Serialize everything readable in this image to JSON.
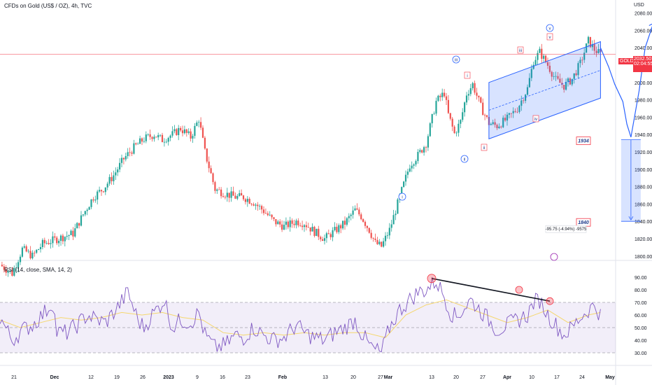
{
  "header": {
    "title": "CFDs on Gold (US$ / OZ), 4h, TVC"
  },
  "rsi": {
    "title": "RSI (14, close, SMA, 14, 2)",
    "overbought": 70,
    "oversold": 30,
    "middle": 50,
    "ticks": [
      "90.00",
      "80.00",
      "70.00",
      "60.00",
      "50.00",
      "40.00",
      "30.00"
    ]
  },
  "price_axis": {
    "unit": "USD",
    "ticks": [
      "2080.00",
      "2060.00",
      "2040.00",
      "2020.00",
      "2000.00",
      "1980.00",
      "1960.00",
      "1940.00",
      "1920.00",
      "1900.00",
      "1880.00",
      "1860.00",
      "1840.00",
      "1820.00",
      "1800.00"
    ],
    "current_label": "2032.50",
    "countdown": "02:04:55",
    "symbol": "GOLD"
  },
  "time_axis": {
    "ticks": [
      "21",
      "Dec",
      "12",
      "19",
      "26",
      "2023",
      "9",
      "16",
      "23",
      "Feb",
      "13",
      "20",
      "27",
      "Mar",
      "13",
      "20",
      "27",
      "Apr",
      "10",
      "17",
      "24",
      "May"
    ]
  },
  "annotations": {
    "wave_labels": [
      "i",
      "ii",
      "iii",
      "iv",
      "v",
      "i",
      "ii",
      "iii",
      "iv",
      "v"
    ],
    "target_1": "1934",
    "target_2": "1840",
    "measure": "-95.75 (-4.94%) -9575"
  },
  "colors": {
    "up": "#26a69a",
    "down": "#ef5350",
    "rsi_line": "#7e57c2",
    "rsi_ma": "#f5d76e",
    "channel": "#2962ff",
    "projection": "#2962ff",
    "price_line": "#f23645",
    "label_red": "#f23645"
  },
  "chart_data": [
    {
      "type": "candlestick",
      "title": "CFDs on Gold (US$ / OZ), 4h, TVC",
      "ylabel": "USD",
      "ylim": [
        1795,
        2095
      ],
      "x_ticks": [
        "21",
        "Dec",
        "12",
        "19",
        "26",
        "2023",
        "9",
        "16",
        "23",
        "Feb",
        "13",
        "20",
        "27",
        "Mar",
        "13",
        "20",
        "27",
        "Apr",
        "10",
        "17",
        "24",
        "May"
      ],
      "path": [
        [
          0,
          1790
        ],
        [
          6,
          1780
        ],
        [
          11,
          1808
        ],
        [
          16,
          1800
        ],
        [
          21,
          1814
        ],
        [
          26,
          1818
        ],
        [
          31,
          1822
        ],
        [
          36,
          1826
        ],
        [
          41,
          1848
        ],
        [
          46,
          1868
        ],
        [
          51,
          1878
        ],
        [
          56,
          1893
        ],
        [
          61,
          1912
        ],
        [
          66,
          1925
        ],
        [
          71,
          1935
        ],
        [
          76,
          1940
        ],
        [
          80,
          1934
        ],
        [
          85,
          1940
        ],
        [
          89,
          1947
        ],
        [
          94,
          1937
        ],
        [
          98,
          1958
        ],
        [
          101,
          1920
        ],
        [
          106,
          1877
        ],
        [
          111,
          1872
        ],
        [
          116,
          1868
        ],
        [
          120,
          1868
        ],
        [
          125,
          1862
        ],
        [
          130,
          1852
        ],
        [
          135,
          1840
        ],
        [
          140,
          1834
        ],
        [
          146,
          1840
        ],
        [
          150,
          1838
        ],
        [
          155,
          1828
        ],
        [
          160,
          1820
        ],
        [
          165,
          1829
        ],
        [
          170,
          1838
        ],
        [
          175,
          1853
        ],
        [
          178,
          1846
        ],
        [
          182,
          1830
        ],
        [
          185,
          1815
        ],
        [
          188,
          1811
        ],
        [
          192,
          1830
        ],
        [
          197,
          1868
        ],
        [
          202,
          1905
        ],
        [
          206,
          1916
        ],
        [
          210,
          1930
        ],
        [
          215,
          1978
        ],
        [
          219,
          1988
        ],
        [
          221,
          1963
        ],
        [
          224,
          1941
        ],
        [
          227,
          1955
        ],
        [
          230,
          1987
        ],
        [
          233,
          1998
        ],
        [
          237,
          1972
        ],
        [
          241,
          1953
        ],
        [
          245,
          1950
        ],
        [
          250,
          1958
        ],
        [
          255,
          1970
        ],
        [
          260,
          1993
        ],
        [
          263,
          2025
        ],
        [
          266,
          2035
        ],
        [
          270,
          2020
        ],
        [
          274,
          2003
        ],
        [
          278,
          1996
        ],
        [
          282,
          2004
        ],
        [
          286,
          2022
        ],
        [
          290,
          2048
        ],
        [
          293,
          2038
        ],
        [
          296,
          2032.5
        ]
      ],
      "current_price": 2032.5,
      "channel": {
        "upper": [
          [
            241,
            2000
          ],
          [
            296,
            2047
          ]
        ],
        "lower": [
          [
            241,
            1935
          ],
          [
            296,
            1982
          ]
        ],
        "mid": [
          [
            241,
            1968
          ],
          [
            296,
            2014
          ]
        ]
      },
      "projection": [
        [
          296,
          2040
        ],
        [
          300,
          2018
        ],
        [
          303,
          1998
        ],
        [
          307,
          1978
        ],
        [
          309,
          1952
        ],
        [
          311,
          1937
        ],
        [
          315,
          1990
        ],
        [
          318,
          2040
        ],
        [
          322,
          2068
        ]
      ],
      "targets": [
        1934,
        1840
      ]
    },
    {
      "type": "line",
      "title": "RSI (14, close, SMA, 14, 2)",
      "ylim": [
        20,
        100
      ],
      "series": [
        {
          "values": [
            [
              0,
              58
            ],
            [
              6,
              40
            ],
            [
              11,
              48
            ],
            [
              16,
              52
            ],
            [
              22,
              62
            ],
            [
              26,
              70
            ],
            [
              28,
              46
            ],
            [
              33,
              46
            ],
            [
              38,
              52
            ],
            [
              43,
              60
            ],
            [
              48,
              56
            ],
            [
              52,
              54
            ],
            [
              58,
              66
            ],
            [
              63,
              78
            ],
            [
              68,
              56
            ],
            [
              71,
              50
            ],
            [
              75,
              60
            ],
            [
              81,
              72
            ],
            [
              85,
              50
            ],
            [
              89,
              56
            ],
            [
              94,
              54
            ],
            [
              98,
              62
            ],
            [
              101,
              44
            ],
            [
              106,
              34
            ],
            [
              111,
              36
            ],
            [
              116,
              44
            ],
            [
              120,
              42
            ],
            [
              125,
              50
            ],
            [
              130,
              44
            ],
            [
              135,
              40
            ],
            [
              140,
              42
            ],
            [
              146,
              52
            ],
            [
              150,
              46
            ],
            [
              155,
              42
            ],
            [
              160,
              40
            ],
            [
              165,
              46
            ],
            [
              170,
              50
            ],
            [
              175,
              56
            ],
            [
              178,
              46
            ],
            [
              182,
              36
            ],
            [
              185,
              32
            ],
            [
              188,
              30
            ],
            [
              192,
              50
            ],
            [
              197,
              64
            ],
            [
              202,
              72
            ],
            [
              206,
              78
            ],
            [
              210,
              80
            ],
            [
              215,
              87
            ],
            [
              219,
              75
            ],
            [
              222,
              62
            ],
            [
              225,
              58
            ],
            [
              228,
              64
            ],
            [
              232,
              72
            ],
            [
              236,
              65
            ],
            [
              241,
              56
            ],
            [
              245,
              48
            ],
            [
              250,
              52
            ],
            [
              255,
              56
            ],
            [
              260,
              60
            ],
            [
              263,
              70
            ],
            [
              266,
              72
            ],
            [
              270,
              60
            ],
            [
              274,
              52
            ],
            [
              278,
              44
            ],
            [
              282,
              50
            ],
            [
              286,
              58
            ],
            [
              290,
              64
            ],
            [
              293,
              68
            ],
            [
              296,
              60
            ]
          ]
        },
        {
          "values": [
            [
              0,
              56
            ],
            [
              10,
              50
            ],
            [
              20,
              54
            ],
            [
              30,
              58
            ],
            [
              40,
              56
            ],
            [
              50,
              58
            ],
            [
              60,
              62
            ],
            [
              70,
              60
            ],
            [
              80,
              62
            ],
            [
              90,
              58
            ],
            [
              100,
              56
            ],
            [
              110,
              46
            ],
            [
              120,
              44
            ],
            [
              130,
              46
            ],
            [
              140,
              44
            ],
            [
              150,
              46
            ],
            [
              160,
              44
            ],
            [
              170,
              46
            ],
            [
              180,
              46
            ],
            [
              190,
              42
            ],
            [
              200,
              60
            ],
            [
              210,
              68
            ],
            [
              220,
              72
            ],
            [
              230,
              66
            ],
            [
              240,
              60
            ],
            [
              250,
              54
            ],
            [
              260,
              58
            ],
            [
              270,
              64
            ],
            [
              280,
              54
            ],
            [
              290,
              60
            ],
            [
              296,
              62
            ]
          ]
        }
      ],
      "divergence": [
        [
          215,
          89
        ],
        [
          296,
          71
        ]
      ],
      "levels": [
        70,
        50,
        30
      ]
    }
  ]
}
